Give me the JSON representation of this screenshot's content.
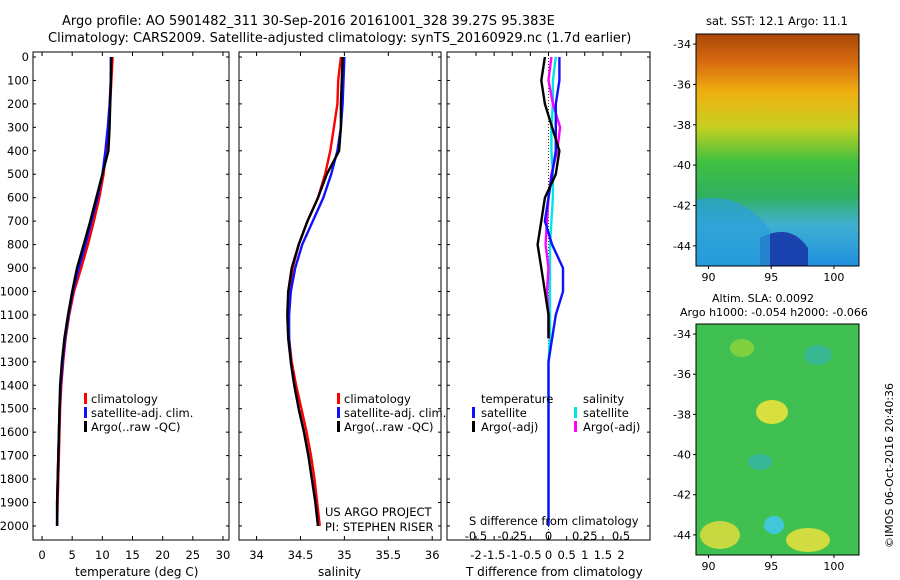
{
  "header": {
    "line1": "Argo profile: AO 5901482_311 30-Sep-2016 20161001_328 39.27S 95.383E",
    "line2": "Climatology: CARS2009. Satellite-adjusted climatology: synTS_20160929.nc (1.7d earlier)"
  },
  "depth_ticks": [
    "0",
    "100",
    "200",
    "300",
    "400",
    "500",
    "600",
    "700",
    "800",
    "900",
    "1000",
    "1100",
    "1200",
    "1300",
    "1400",
    "1500",
    "1600",
    "1700",
    "1800",
    "1900",
    "2000"
  ],
  "colors": {
    "climatology": "#ff0000",
    "satellite": "#1010ff",
    "argo": "#000000",
    "sal_satellite": "#00e5e5",
    "sal_argo": "#ff00ff"
  },
  "legends": {
    "profile": [
      "climatology",
      "satellite-adj. clim.",
      "Argo(..raw -QC)"
    ],
    "diff_temperature_title": "temperature",
    "diff_salinity_title": "salinity",
    "diff_items": [
      "satellite",
      "Argo(-adj)"
    ]
  },
  "credits": {
    "project": "US ARGO PROJECT",
    "pi": "PI: STEPHEN RISER",
    "imos": "©IMOS 06-Oct-2016 20:40:36"
  },
  "maps": {
    "sst_title": "sat. SST: 12.1 Argo: 11.1",
    "sla_title1": "Altim. SLA: 0.0092",
    "sla_title2": "Argo h1000: -0.054 h2000: -0.066",
    "lat_ticks": [
      "-34",
      "-36",
      "-38",
      "-40",
      "-42",
      "-44"
    ],
    "lon_ticks": [
      "90",
      "95",
      "100"
    ]
  },
  "chart_data": [
    {
      "type": "line",
      "xlabel": "temperature (deg C)",
      "xticks": [
        "0",
        "5",
        "10",
        "15",
        "20",
        "25",
        "30"
      ],
      "xlim": [
        -1.5,
        31
      ],
      "ylim": [
        2060,
        0
      ],
      "series": [
        {
          "name": "climatology",
          "x": [
            11.7,
            11.5,
            11.3,
            11.0,
            10.6,
            10.2,
            9.5,
            8.6,
            7.6,
            6.5,
            5.3,
            4.5,
            3.9,
            3.5,
            3.2,
            3.0,
            2.9,
            2.8,
            2.7,
            2.6,
            2.5
          ],
          "y": [
            0,
            100,
            200,
            300,
            400,
            500,
            600,
            700,
            800,
            900,
            1000,
            1100,
            1200,
            1300,
            1400,
            1500,
            1600,
            1700,
            1800,
            1900,
            2000
          ]
        },
        {
          "name": "satellite-adj. clim.",
          "x": [
            11.4,
            11.4,
            11.2,
            10.9,
            10.5,
            10.0,
            9.2,
            8.2,
            7.2,
            6.1,
            5.1,
            4.4,
            3.8,
            3.4,
            3.1,
            2.9,
            2.8,
            2.7,
            2.6,
            2.5,
            2.5
          ],
          "y": [
            0,
            100,
            200,
            300,
            400,
            500,
            600,
            700,
            800,
            900,
            1000,
            1100,
            1200,
            1300,
            1400,
            1500,
            1600,
            1700,
            1800,
            1900,
            2000
          ]
        },
        {
          "name": "Argo(..raw -QC)",
          "x": [
            11.5,
            11.4,
            11.3,
            11.2,
            11.0,
            10.0,
            9.0,
            8.0,
            6.9,
            5.8,
            5.0,
            4.3,
            3.7,
            3.3,
            3.0,
            2.9,
            2.8,
            2.7,
            2.6,
            2.5,
            2.5
          ],
          "y": [
            0,
            100,
            200,
            300,
            400,
            500,
            600,
            700,
            800,
            900,
            1000,
            1100,
            1200,
            1300,
            1400,
            1500,
            1600,
            1700,
            1800,
            1900,
            2000
          ]
        }
      ]
    },
    {
      "type": "line",
      "xlabel": "salinity",
      "xticks": [
        "34",
        "34.5",
        "35",
        "35.5",
        "36"
      ],
      "xtick_values": [
        34,
        34.5,
        35,
        35.5,
        36
      ],
      "xlim": [
        33.8,
        36.1
      ],
      "ylim": [
        2060,
        0
      ],
      "series": [
        {
          "name": "climatology",
          "x": [
            34.96,
            34.93,
            34.92,
            34.88,
            34.84,
            34.78,
            34.7,
            34.58,
            34.48,
            34.41,
            34.37,
            34.36,
            34.37,
            34.4,
            34.45,
            34.51,
            34.57,
            34.62,
            34.66,
            34.69,
            34.72
          ],
          "y": [
            0,
            100,
            200,
            300,
            400,
            500,
            600,
            700,
            800,
            900,
            1000,
            1100,
            1200,
            1300,
            1400,
            1500,
            1600,
            1700,
            1800,
            1900,
            2000
          ]
        },
        {
          "name": "satellite-adj. clim.",
          "x": [
            35.0,
            34.99,
            34.98,
            34.96,
            34.92,
            34.85,
            34.76,
            34.64,
            34.52,
            34.44,
            34.39,
            34.37,
            34.37,
            34.39,
            34.43,
            34.48,
            34.54,
            34.59,
            34.63,
            34.67,
            34.7
          ],
          "y": [
            0,
            100,
            200,
            300,
            400,
            500,
            600,
            700,
            800,
            900,
            1000,
            1100,
            1200,
            1300,
            1400,
            1500,
            1600,
            1700,
            1800,
            1900,
            2000
          ]
        },
        {
          "name": "Argo(..raw -QC)",
          "x": [
            34.98,
            34.97,
            34.96,
            34.96,
            34.94,
            34.8,
            34.7,
            34.58,
            34.48,
            34.4,
            34.36,
            34.35,
            34.36,
            34.39,
            34.43,
            34.48,
            34.54,
            34.59,
            34.63,
            34.67,
            34.7
          ],
          "y": [
            0,
            100,
            200,
            300,
            400,
            500,
            600,
            700,
            800,
            900,
            1000,
            1100,
            1200,
            1300,
            1400,
            1500,
            1600,
            1700,
            1800,
            1900,
            2000
          ]
        }
      ]
    },
    {
      "type": "line",
      "xlabel": "T difference from climatology",
      "xlabel_top": "S difference from climatology",
      "xticks": [
        "-2",
        "-1.5",
        "-1",
        "-0.5",
        "0",
        "0.5",
        "1",
        "1.5",
        "2"
      ],
      "xtick_values": [
        -2,
        -1.5,
        -1,
        -0.5,
        0,
        0.5,
        1,
        1.5,
        2
      ],
      "xlim": [
        -2.8,
        2.8
      ],
      "sticks": [
        "-0.5",
        "-0.25",
        "0",
        "0.25",
        "0.5"
      ],
      "stick_values": [
        -0.5,
        -0.25,
        0,
        0.25,
        0.5
      ],
      "slim": [
        -0.7,
        0.7
      ],
      "ylim": [
        2060,
        0
      ],
      "series": [
        {
          "name": "temperature satellite",
          "x": [
            0.3,
            0.3,
            0.2,
            0.2,
            0.2,
            0.1,
            0.0,
            -0.1,
            0.1,
            0.4,
            0.4,
            0.2,
            0.1,
            0.0,
            0.0,
            0.0,
            0.0,
            0.0,
            0.0,
            0.0,
            0.0
          ],
          "y": [
            0,
            100,
            200,
            300,
            400,
            500,
            600,
            700,
            800,
            900,
            1000,
            1100,
            1200,
            1300,
            1400,
            1500,
            1600,
            1700,
            1800,
            1900,
            2000
          ]
        },
        {
          "name": "temperature Argo(-adj)",
          "x": [
            -0.1,
            -0.2,
            -0.1,
            0.1,
            0.3,
            0.2,
            -0.1,
            -0.2,
            -0.3,
            -0.2,
            -0.1,
            0.0,
            0.0,
            null,
            null,
            null,
            null,
            null,
            null,
            null,
            null
          ],
          "y": [
            0,
            100,
            200,
            300,
            400,
            500,
            600,
            700,
            800,
            900,
            1000,
            1100,
            1200,
            1300,
            1400,
            1500,
            1600,
            1700,
            1800,
            1900,
            2000
          ]
        },
        {
          "name": "salinity satellite",
          "x": [
            0.05,
            0.03,
            0.03,
            0.02,
            0.02,
            0.03,
            0.03,
            0.02,
            0.01,
            0.01,
            0.01,
            0.01,
            0.01,
            0.0,
            0.0,
            0.0,
            0.0,
            0.0,
            0.0,
            0.0,
            0.0
          ],
          "y": [
            0,
            100,
            200,
            300,
            400,
            500,
            600,
            700,
            800,
            900,
            1000,
            1100,
            1200,
            1300,
            1400,
            1500,
            1600,
            1700,
            1800,
            1900,
            2000
          ]
        },
        {
          "name": "salinity Argo(-adj)",
          "x": [
            0.02,
            0.0,
            0.03,
            0.08,
            0.06,
            0.02,
            0.0,
            -0.01,
            -0.02,
            0.0,
            -0.01,
            0.0,
            0.0,
            null,
            null,
            null,
            null,
            null,
            null,
            null,
            null
          ],
          "y": [
            0,
            100,
            200,
            300,
            400,
            500,
            600,
            700,
            800,
            900,
            1000,
            1100,
            1200,
            1300,
            1400,
            1500,
            1600,
            1700,
            1800,
            1900,
            2000
          ]
        }
      ]
    },
    {
      "type": "heatmap",
      "title": "sat. SST: 12.1 Argo: 11.1",
      "xlim": [
        89,
        102
      ],
      "ylim": [
        -45,
        -33.5
      ]
    },
    {
      "type": "heatmap",
      "title": "Altim. SLA: 0.0092",
      "subtitle": "Argo h1000: -0.054 h2000: -0.066",
      "xlim": [
        89,
        102
      ],
      "ylim": [
        -45,
        -33.5
      ]
    }
  ]
}
